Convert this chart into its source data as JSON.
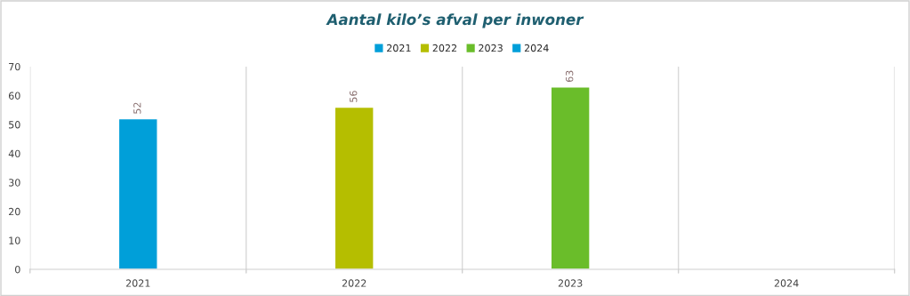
{
  "chart_data": {
    "type": "bar",
    "title": "Aantal kilo’s afval per inwoner",
    "categories": [
      "2021",
      "2022",
      "2023",
      "2024"
    ],
    "series": [
      {
        "name": "2021",
        "color": "#009fd9",
        "values": [
          52,
          null,
          null,
          null
        ]
      },
      {
        "name": "2022",
        "color": "#b5be00",
        "values": [
          null,
          56,
          null,
          null
        ]
      },
      {
        "name": "2023",
        "color": "#6abd2a",
        "values": [
          null,
          null,
          63,
          null
        ]
      },
      {
        "name": "2024",
        "color": "#009fd9",
        "values": [
          null,
          null,
          null,
          null
        ]
      }
    ],
    "stacked": true,
    "ylim": [
      0,
      70
    ],
    "yticks": [
      0,
      10,
      20,
      30,
      40,
      50,
      60,
      70
    ],
    "grid": "x",
    "legend": "top",
    "data_labels": true
  }
}
